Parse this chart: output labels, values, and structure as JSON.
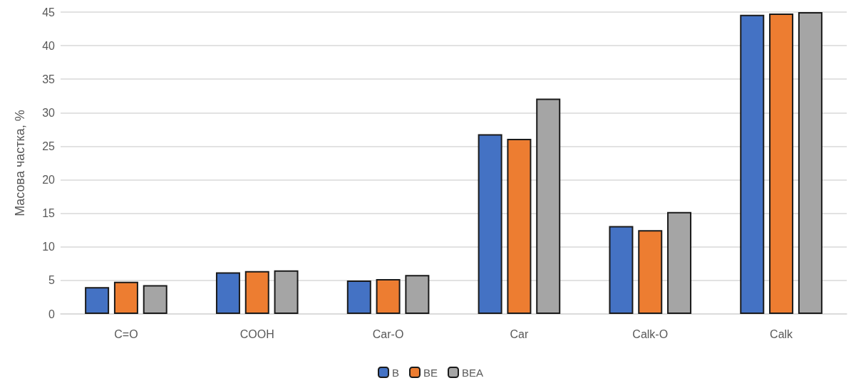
{
  "chart_data": {
    "type": "bar",
    "ylabel": "Масова частка, %",
    "categories": [
      "C=O",
      "COOH",
      "Car-O",
      "Car",
      "Calk-O",
      "Calk"
    ],
    "series": [
      {
        "name": "B",
        "color": "#4472c4",
        "values": [
          4.0,
          6.2,
          5.0,
          26.8,
          13.1,
          44.6
        ]
      },
      {
        "name": "BE",
        "color": "#ed7d31",
        "values": [
          4.8,
          6.4,
          5.2,
          26.1,
          12.5,
          44.8
        ]
      },
      {
        "name": "BEA",
        "color": "#a5a5a5",
        "values": [
          4.3,
          6.5,
          5.8,
          32.1,
          15.2,
          45
        ]
      }
    ],
    "ylim": [
      0,
      45
    ],
    "yticks": [
      0,
      5,
      10,
      15,
      20,
      25,
      30,
      35,
      40,
      45
    ],
    "grid": "y",
    "legend": "bottom"
  }
}
